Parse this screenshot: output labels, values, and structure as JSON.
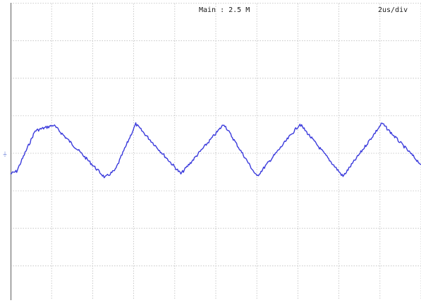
{
  "header": {
    "sample_rate": "Main : 2.5 M",
    "timebase": "2us/div"
  },
  "colors": {
    "trace": "#3b3bdc",
    "grid": "#bdbdbd",
    "frame": "#8a8a8a",
    "marker": "#6a7fd8"
  },
  "channel_marker": {
    "label": "CH1",
    "icon": "ground-level-marker-icon"
  },
  "chart_data": {
    "type": "line",
    "title": "",
    "xlabel": "",
    "ylabel": "",
    "grid": true,
    "xlim": [
      0,
      20
    ],
    "ylim": [
      -4,
      4
    ],
    "x_units": "us",
    "y_units": "div",
    "time_per_div": "2us/div",
    "series": [
      {
        "name": "",
        "x": [
          0.0,
          0.3,
          1.2,
          2.1,
          4.6,
          5.1,
          6.1,
          8.3,
          10.4,
          12.0,
          14.1,
          16.2,
          18.1,
          20.0
        ],
        "y": [
          -0.55,
          -0.48,
          0.6,
          0.75,
          -0.65,
          -0.45,
          0.78,
          -0.55,
          0.78,
          -0.62,
          0.78,
          -0.62,
          0.8,
          -0.3
        ]
      }
    ]
  }
}
